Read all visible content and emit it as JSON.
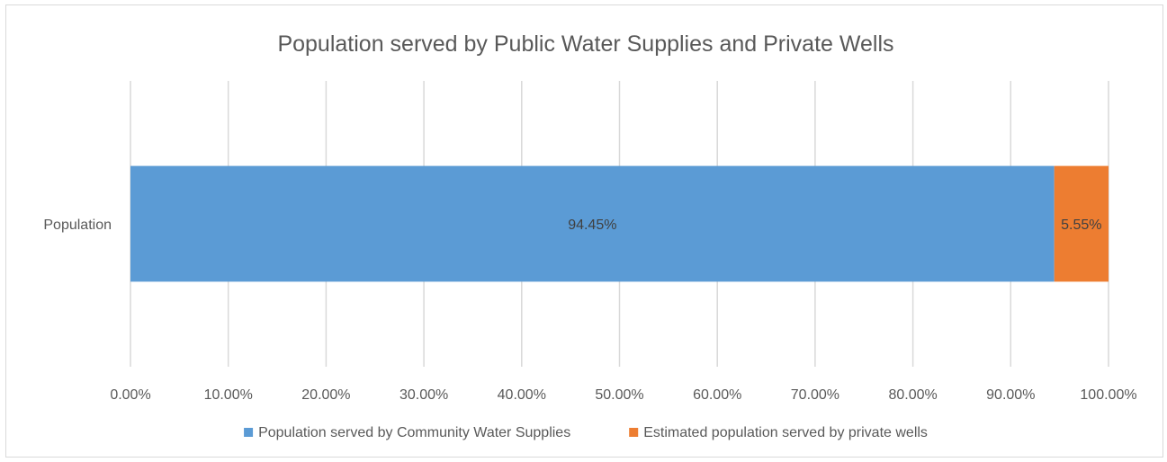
{
  "chart_data": {
    "type": "bar",
    "orientation": "horizontal",
    "stacked": "percent",
    "title": "Population served by Public Water Supplies and Private Wells",
    "categories": [
      "Population"
    ],
    "series": [
      {
        "name": "Population served by Community Water Supplies",
        "values": [
          94.45
        ],
        "labels": [
          "94.45%"
        ],
        "color": "#5b9bd5"
      },
      {
        "name": "Estimated population served by private wells",
        "values": [
          5.55
        ],
        "labels": [
          "5.55%"
        ],
        "color": "#ed7d31"
      }
    ],
    "xlim": [
      0,
      100
    ],
    "x_ticks": [
      "0.00%",
      "10.00%",
      "20.00%",
      "30.00%",
      "40.00%",
      "50.00%",
      "60.00%",
      "70.00%",
      "80.00%",
      "90.00%",
      "100.00%"
    ],
    "grid": true,
    "gridline_color": "#d9d9d9",
    "legend": "bottom"
  }
}
